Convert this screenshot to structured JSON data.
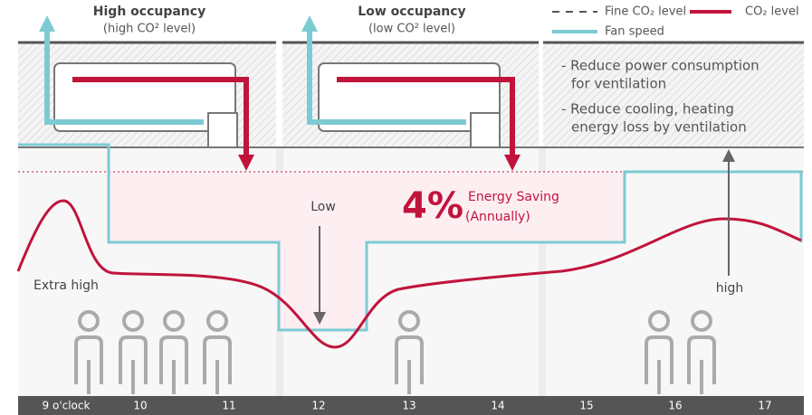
{
  "top_labels": [
    {
      "title": "High occupancy",
      "subtitle": "(high CO² level)"
    },
    {
      "title": "Low occupancy",
      "subtitle": "(low CO² level)"
    }
  ],
  "legend": {
    "fine": "Fine CO₂ level",
    "co2": "CO₂ level",
    "fan": "Fan speed"
  },
  "benefits": [
    [
      "- Reduce power consumption",
      "for ventilation"
    ],
    [
      "- Reduce cooling, heating",
      "energy loss by ventilation"
    ]
  ],
  "labels": {
    "low": "Low",
    "high": "high",
    "extra_high": "Extra high"
  },
  "saving": {
    "percent": "4%",
    "text": "Energy Saving",
    "period": "(Annually)"
  },
  "time_axis": [
    "9 o'clock",
    "10",
    "11",
    "12",
    "13",
    "14",
    "15",
    "16",
    "17"
  ]
}
